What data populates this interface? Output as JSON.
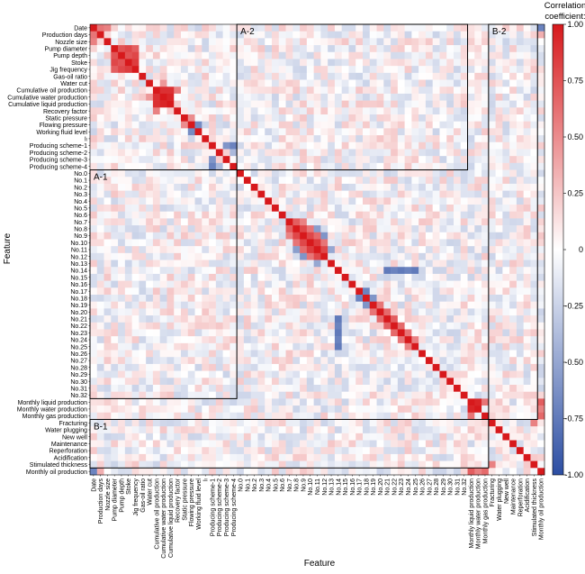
{
  "chart_data": {
    "type": "heatmap",
    "title": "",
    "xlabel": "Feature",
    "ylabel": "Feature",
    "colorbar": {
      "title_line1": "Correlation",
      "title_line2": "coefficient:",
      "range": [
        -1.0,
        1.0
      ],
      "ticks": [
        "1.00",
        "0.75",
        "0.50",
        "0.25",
        "0",
        "-0.25",
        "-0.50",
        "-0.75",
        "-1.00"
      ],
      "tick_values": [
        1.0,
        0.75,
        0.5,
        0.25,
        0,
        -0.25,
        -0.5,
        -0.75,
        -1.0
      ],
      "colors": {
        "positive": "#d7191c",
        "zero": "#ffffff",
        "negative": "#2c4ea3"
      }
    },
    "features": [
      "Date",
      "Production days",
      "Nozzle size",
      "Pump diameter",
      "Pump depth",
      "Stoke",
      "Jig frequency",
      "Gas-oil ratio",
      "Water cut",
      "Cumulative oil production",
      "Cumulative water production",
      "Cumulative liquid production",
      "Recovery factor",
      "Static pressure",
      "Flowing pressure",
      "Working fluid level",
      "Iₗ",
      "Producing scheme-1",
      "Producing scheme-2",
      "Producing scheme-3",
      "Producing scheme-4",
      "No.0",
      "No.1",
      "No.2",
      "No.3",
      "No.4",
      "No.5",
      "No.6",
      "No.7",
      "No.8",
      "No.9",
      "No.10",
      "No.11",
      "No.12",
      "No.13",
      "No.14",
      "No.15",
      "No.16",
      "No.17",
      "No.18",
      "No.19",
      "No.20",
      "No.21",
      "No.22",
      "No.23",
      "No.24",
      "No.25",
      "No.26",
      "No.27",
      "No.28",
      "No.29",
      "No.30",
      "No.31",
      "No.32",
      "Monthly liquid production",
      "Monthly water production",
      "Monthly gas production",
      "Fracturing",
      "Water plugging",
      "New well",
      "Maintenance",
      "Reperforation",
      "Acidification",
      "Stimulated thickness",
      "Monthly oil production"
    ],
    "strong_correlations": [
      {
        "a": "Date",
        "b": "Production days",
        "value": 0.6
      },
      {
        "a": "Date",
        "b": "Nozzle size",
        "value": 0.55
      },
      {
        "a": "Pump diameter",
        "b": "Pump depth",
        "value": 0.75
      },
      {
        "a": "Pump diameter",
        "b": "Stoke",
        "value": 0.8
      },
      {
        "a": "Pump depth",
        "b": "Stoke",
        "value": 0.75
      },
      {
        "a": "Pump diameter",
        "b": "Jig frequency",
        "value": 0.7
      },
      {
        "a": "Pump depth",
        "b": "Jig frequency",
        "value": 0.8
      },
      {
        "a": "Stoke",
        "b": "Jig frequency",
        "value": 0.85
      },
      {
        "a": "Cumulative oil production",
        "b": "Cumulative water production",
        "value": 0.9
      },
      {
        "a": "Cumulative oil production",
        "b": "Cumulative liquid production",
        "value": 0.9
      },
      {
        "a": "Cumulative water production",
        "b": "Cumulative liquid production",
        "value": 0.95
      },
      {
        "a": "Recovery factor",
        "b": "Cumulative oil production",
        "value": 0.55
      },
      {
        "a": "Water cut",
        "b": "Cumulative water production",
        "value": 0.45
      },
      {
        "a": "Static pressure",
        "b": "Flowing pressure",
        "value": 0.5
      },
      {
        "a": "Flowing pressure",
        "b": "Working fluid level",
        "value": -0.65
      },
      {
        "a": "Producing scheme-1",
        "b": "Producing scheme-3",
        "value": -0.6
      },
      {
        "a": "Producing scheme-1",
        "b": "Producing scheme-4",
        "value": -0.7
      },
      {
        "a": "Producing scheme-2",
        "b": "Producing scheme-4",
        "value": -0.4
      },
      {
        "a": "No.7",
        "b": "No.8",
        "value": 0.7
      },
      {
        "a": "No.7",
        "b": "No.9",
        "value": 0.55
      },
      {
        "a": "No.8",
        "b": "No.9",
        "value": 0.8
      },
      {
        "a": "No.8",
        "b": "No.10",
        "value": 0.6
      },
      {
        "a": "No.9",
        "b": "No.10",
        "value": 0.8
      },
      {
        "a": "No.9",
        "b": "No.11",
        "value": 0.65
      },
      {
        "a": "No.10",
        "b": "No.11",
        "value": 0.85
      },
      {
        "a": "No.10",
        "b": "No.12",
        "value": 0.6
      },
      {
        "a": "No.11",
        "b": "No.12",
        "value": 0.8
      },
      {
        "a": "No.9",
        "b": "No.12",
        "value": -0.6
      },
      {
        "a": "No.8",
        "b": "No.11",
        "value": -0.55
      },
      {
        "a": "No.11",
        "b": "No.13",
        "value": -0.5
      },
      {
        "a": "No.14",
        "b": "No.21",
        "value": -0.75
      },
      {
        "a": "No.14",
        "b": "No.22",
        "value": -0.7
      },
      {
        "a": "No.14",
        "b": "No.23",
        "value": -0.75
      },
      {
        "a": "No.14",
        "b": "No.24",
        "value": -0.7
      },
      {
        "a": "No.14",
        "b": "No.25",
        "value": -0.75
      },
      {
        "a": "No.17",
        "b": "No.18",
        "value": -0.7
      },
      {
        "a": "No.18",
        "b": "No.19",
        "value": -0.6
      },
      {
        "a": "No.19",
        "b": "No.20",
        "value": 0.6
      },
      {
        "a": "No.20",
        "b": "No.21",
        "value": 0.65
      },
      {
        "a": "No.21",
        "b": "No.22",
        "value": 0.7
      },
      {
        "a": "No.22",
        "b": "No.23",
        "value": 0.65
      },
      {
        "a": "No.23",
        "b": "No.24",
        "value": 0.6
      },
      {
        "a": "No.24",
        "b": "No.25",
        "value": 0.55
      },
      {
        "a": "Monthly liquid production",
        "b": "Monthly water production",
        "value": 0.95
      },
      {
        "a": "Monthly liquid production",
        "b": "Monthly gas production",
        "value": 0.6
      },
      {
        "a": "Monthly liquid production",
        "b": "Monthly oil production",
        "value": 0.7
      },
      {
        "a": "Monthly water production",
        "b": "Monthly oil production",
        "value": 0.55
      },
      {
        "a": "Monthly gas production",
        "b": "Monthly oil production",
        "value": 0.65
      },
      {
        "a": "Stimulated thickness",
        "b": "Fracturing",
        "value": 0.55
      },
      {
        "a": "Date",
        "b": "Monthly oil production",
        "value": -0.7
      },
      {
        "a": "Production days",
        "b": "Monthly oil production",
        "value": 0.35
      }
    ],
    "blocks": [
      {
        "label": "A-1",
        "rows": [
          "No.0",
          "No.32"
        ],
        "cols": [
          "Date",
          "Producing scheme-4"
        ]
      },
      {
        "label": "A-2",
        "rows": [
          "Date",
          "Producing scheme-4"
        ],
        "cols": [
          "No.0",
          "No.32"
        ]
      },
      {
        "label": "B-1",
        "rows": [
          "Fracturing",
          "Stimulated thickness"
        ],
        "cols": [
          "Date",
          "Monthly gas production"
        ]
      },
      {
        "label": "B-2",
        "rows": [
          "Date",
          "Monthly gas production"
        ],
        "cols": [
          "Fracturing",
          "Stimulated thickness"
        ]
      }
    ]
  }
}
